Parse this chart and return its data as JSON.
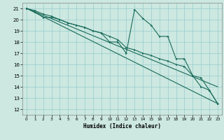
{
  "xlabel": "Humidex (Indice chaleur)",
  "xlim": [
    -0.5,
    23.5
  ],
  "ylim": [
    11.5,
    21.5
  ],
  "yticks": [
    12,
    13,
    14,
    15,
    16,
    17,
    18,
    19,
    20,
    21
  ],
  "xticks": [
    0,
    1,
    2,
    3,
    4,
    5,
    6,
    7,
    8,
    9,
    10,
    11,
    12,
    13,
    14,
    15,
    16,
    17,
    18,
    19,
    20,
    21,
    22,
    23
  ],
  "bg_color": "#cce8e0",
  "grid_color": "#99cccc",
  "line_color": "#1a6b5a",
  "series_zigzag_x": [
    0,
    1,
    2,
    3,
    4,
    5,
    6,
    7,
    8,
    9,
    10,
    11,
    12,
    13,
    14,
    15,
    16,
    17,
    18,
    19,
    20,
    21,
    22,
    23
  ],
  "series_zigzag_y": [
    21.0,
    20.8,
    20.5,
    20.3,
    20.0,
    19.7,
    19.5,
    19.3,
    19.0,
    18.8,
    18.0,
    18.0,
    17.0,
    20.9,
    20.1,
    19.5,
    18.5,
    18.5,
    16.5,
    16.5,
    15.0,
    14.0,
    13.7,
    12.5
  ],
  "series_smooth_x": [
    0,
    1,
    2,
    3,
    4,
    5,
    6,
    7,
    8,
    9,
    10,
    11,
    12,
    13,
    14,
    15,
    16,
    17,
    18,
    19,
    20,
    21,
    22,
    23
  ],
  "series_smooth_y": [
    21.0,
    20.7,
    20.2,
    20.2,
    20.0,
    19.7,
    19.5,
    19.3,
    19.0,
    18.8,
    18.5,
    18.2,
    17.5,
    17.3,
    17.0,
    16.8,
    16.5,
    16.3,
    16.0,
    15.8,
    15.0,
    14.8,
    13.7,
    12.5
  ],
  "series_line1_x": [
    0,
    23
  ],
  "series_line1_y": [
    21.0,
    12.5
  ],
  "series_line2_x": [
    0,
    23
  ],
  "series_line2_y": [
    21.0,
    14.0
  ]
}
